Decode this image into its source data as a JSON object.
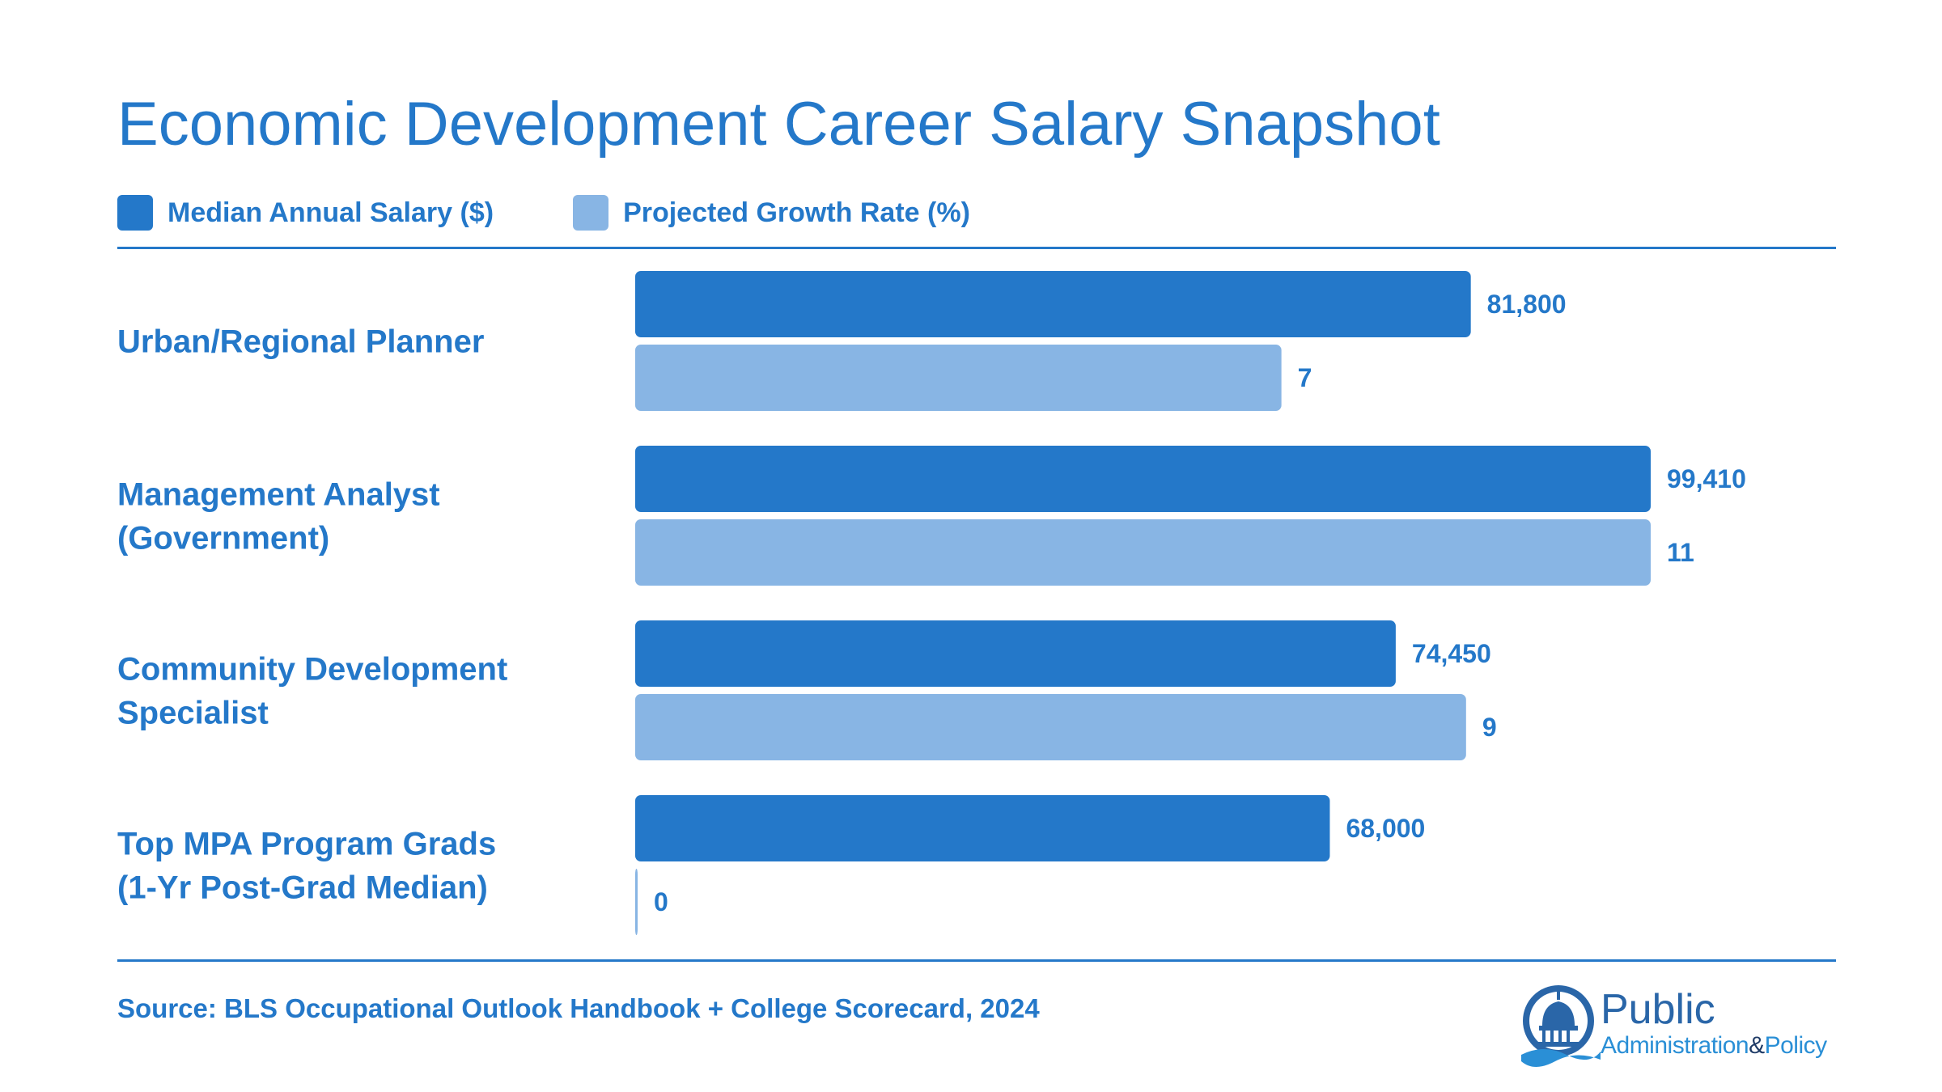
{
  "title": "Economic Development Career Salary Snapshot",
  "legend": [
    {
      "label": "Median Annual Salary ($)",
      "color": "#2478c9"
    },
    {
      "label": "Projected Growth Rate (%)",
      "color": "#88b5e4"
    }
  ],
  "source": "Source: BLS Occupational Outlook Handbook + College Scorecard, 2024",
  "logo": {
    "line1": "Public",
    "line2": "Administration",
    "amp": "&",
    "line3": "Policy"
  },
  "chart_data": {
    "type": "bar",
    "orientation": "horizontal",
    "categories": [
      [
        "Urban/Regional Planner"
      ],
      [
        "Management Analyst",
        "(Government)"
      ],
      [
        "Community Development",
        "Specialist"
      ],
      [
        "Top MPA Program Grads",
        "(1-Yr Post-Grad Median)"
      ]
    ],
    "series": [
      {
        "name": "Median Annual Salary ($)",
        "values": [
          81800,
          99410,
          74450,
          68000
        ],
        "labels": [
          "81,800",
          "99,410",
          "74,450",
          "68,000"
        ],
        "color": "#2478c9",
        "max": 99410
      },
      {
        "name": "Projected Growth Rate (%)",
        "values": [
          7,
          11,
          9,
          0
        ],
        "labels": [
          "7",
          "11",
          "9",
          "0"
        ],
        "color": "#88b5e4",
        "max": 11
      }
    ],
    "grid": false,
    "legend_position": "top-left"
  }
}
